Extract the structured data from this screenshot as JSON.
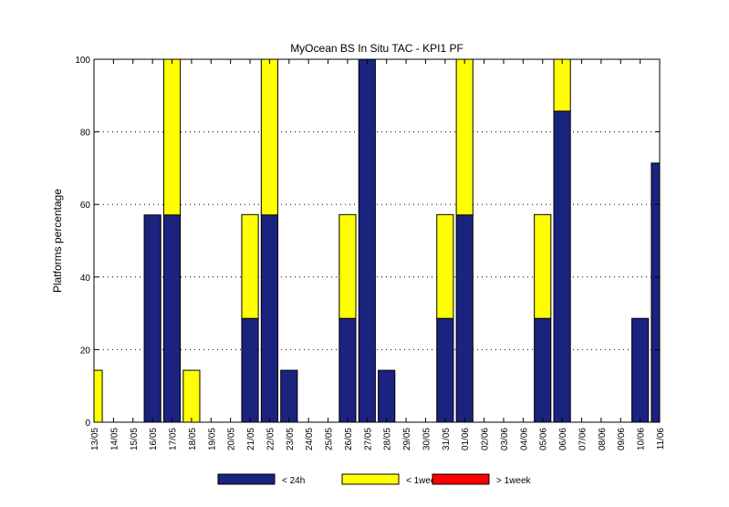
{
  "chart_data": {
    "type": "bar",
    "stacked": true,
    "title": "MyOcean  BS In Situ TAC - KPI1  PF",
    "xlabel": "",
    "ylabel": "Platforms percentage",
    "ylim": [
      0,
      100
    ],
    "yticks": [
      0,
      20,
      40,
      60,
      80,
      100
    ],
    "grid": "horizontal-dotted",
    "legend_position": "bottom",
    "categories": [
      "13/05",
      "14/05",
      "15/05",
      "16/05",
      "17/05",
      "18/05",
      "19/05",
      "20/05",
      "21/05",
      "22/05",
      "23/05",
      "24/05",
      "25/05",
      "26/05",
      "27/05",
      "28/05",
      "29/05",
      "30/05",
      "31/05",
      "01/06",
      "02/06",
      "03/06",
      "04/06",
      "05/06",
      "06/06",
      "07/06",
      "08/06",
      "09/06",
      "10/06",
      "11/06"
    ],
    "series": [
      {
        "name": "< 24h",
        "color": "#1a237e",
        "values": [
          0,
          0,
          0,
          57.1,
          57.1,
          0,
          0,
          0,
          28.6,
          57.1,
          14.3,
          0,
          0,
          28.6,
          100,
          14.3,
          0,
          0,
          28.6,
          57.1,
          0,
          0,
          0,
          28.6,
          85.7,
          0,
          0,
          0,
          28.6,
          71.4
        ]
      },
      {
        "name": "< 1week",
        "color": "#ffff00",
        "values": [
          14.3,
          0,
          0,
          0,
          42.9,
          14.3,
          0,
          0,
          28.6,
          42.9,
          0,
          0,
          0,
          28.6,
          0,
          0,
          0,
          0,
          28.6,
          42.9,
          0,
          0,
          0,
          28.6,
          14.3,
          0,
          0,
          0,
          0,
          0
        ]
      },
      {
        "name": "> 1week",
        "color": "#ff0000",
        "values": [
          0,
          0,
          0,
          0,
          0,
          0,
          0,
          0,
          0,
          0,
          0,
          0,
          0,
          0,
          0,
          0,
          0,
          0,
          0,
          0,
          0,
          0,
          0,
          0,
          0,
          0,
          0,
          0,
          0,
          0
        ]
      }
    ]
  }
}
